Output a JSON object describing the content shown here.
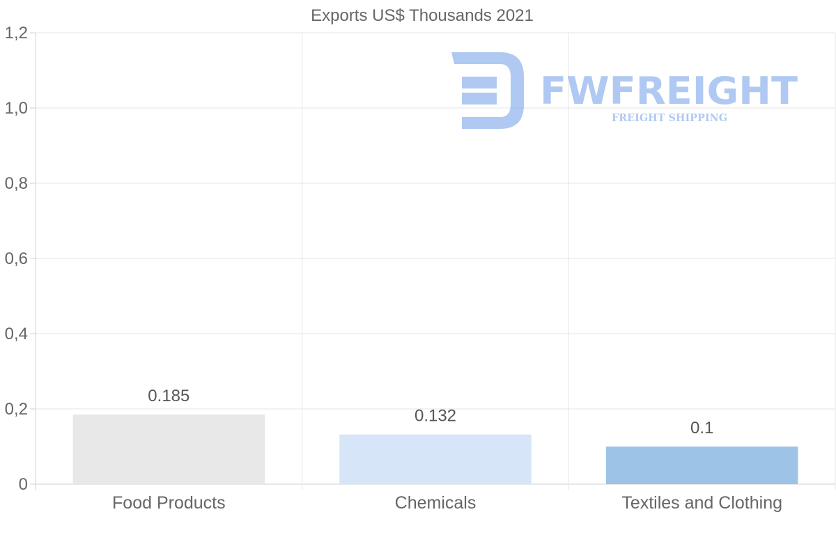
{
  "chart_data": {
    "type": "bar",
    "title": "Exports US$ Thousands 2021",
    "categories": [
      "Food Products",
      "Chemicals",
      "Textiles and Clothing"
    ],
    "values": [
      0.185,
      0.132,
      0.1
    ],
    "value_labels": [
      "0.185",
      "0.132",
      "0.1"
    ],
    "colors": [
      "#e8e8e8",
      "#d6e6f8",
      "#9dc4e6"
    ],
    "ylim": [
      0,
      1.2
    ],
    "yticks": [
      0,
      0.2,
      0.4,
      0.6,
      0.8,
      1.0,
      1.2
    ],
    "ytick_labels": [
      "0",
      "0,2",
      "0,4",
      "0,6",
      "0,8",
      "1,0",
      "1,2"
    ],
    "xlabel": "",
    "ylabel": "",
    "grid": true,
    "legend": "none"
  },
  "watermark": {
    "brand": "FWFREIGHT",
    "tagline": "FREIGHT SHIPPING",
    "color": "#3a7be0"
  }
}
